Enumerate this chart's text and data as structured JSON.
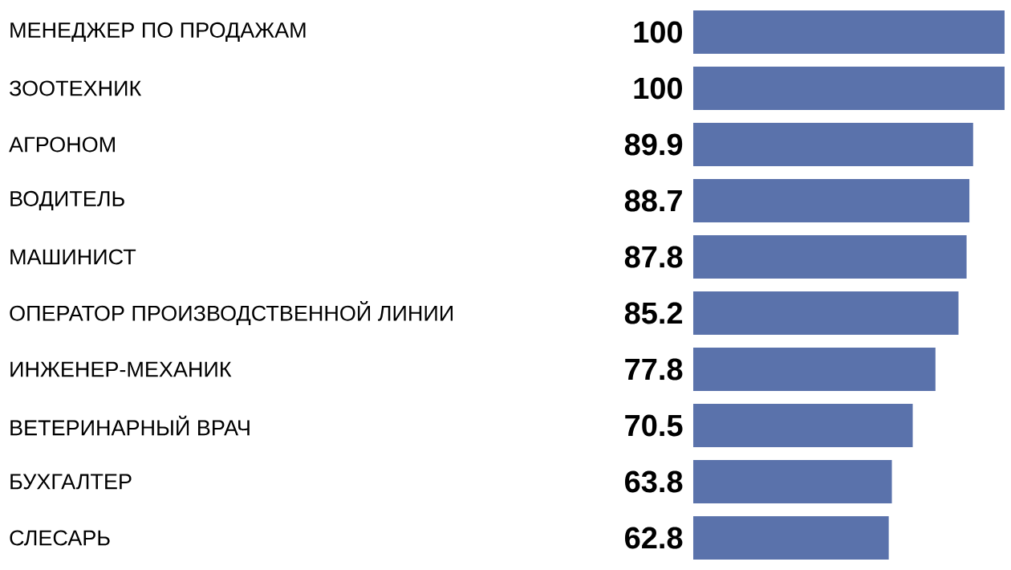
{
  "chart_data": {
    "type": "bar",
    "orientation": "horizontal",
    "categories": [
      "МЕНЕДЖЕР ПО ПРОДАЖАМ",
      "ЗООТЕХНИК",
      "АГРОНОМ",
      "ВОДИТЕЛЬ",
      "МАШИНИСТ",
      "ОПЕРАТОР ПРОИЗВОДСТВЕННОЙ ЛИНИИ",
      "ИНЖЕНЕР-МЕХАНИК",
      "ВЕТЕРИНАРНЫЙ ВРАЧ",
      "БУХГАЛТЕР",
      "СЛЕСАРЬ"
    ],
    "values": [
      100,
      100,
      89.9,
      88.7,
      87.8,
      85.2,
      77.8,
      70.5,
      63.8,
      62.8
    ],
    "color": "#5a72ab",
    "data_labels": true,
    "tick_labels": "y"
  }
}
